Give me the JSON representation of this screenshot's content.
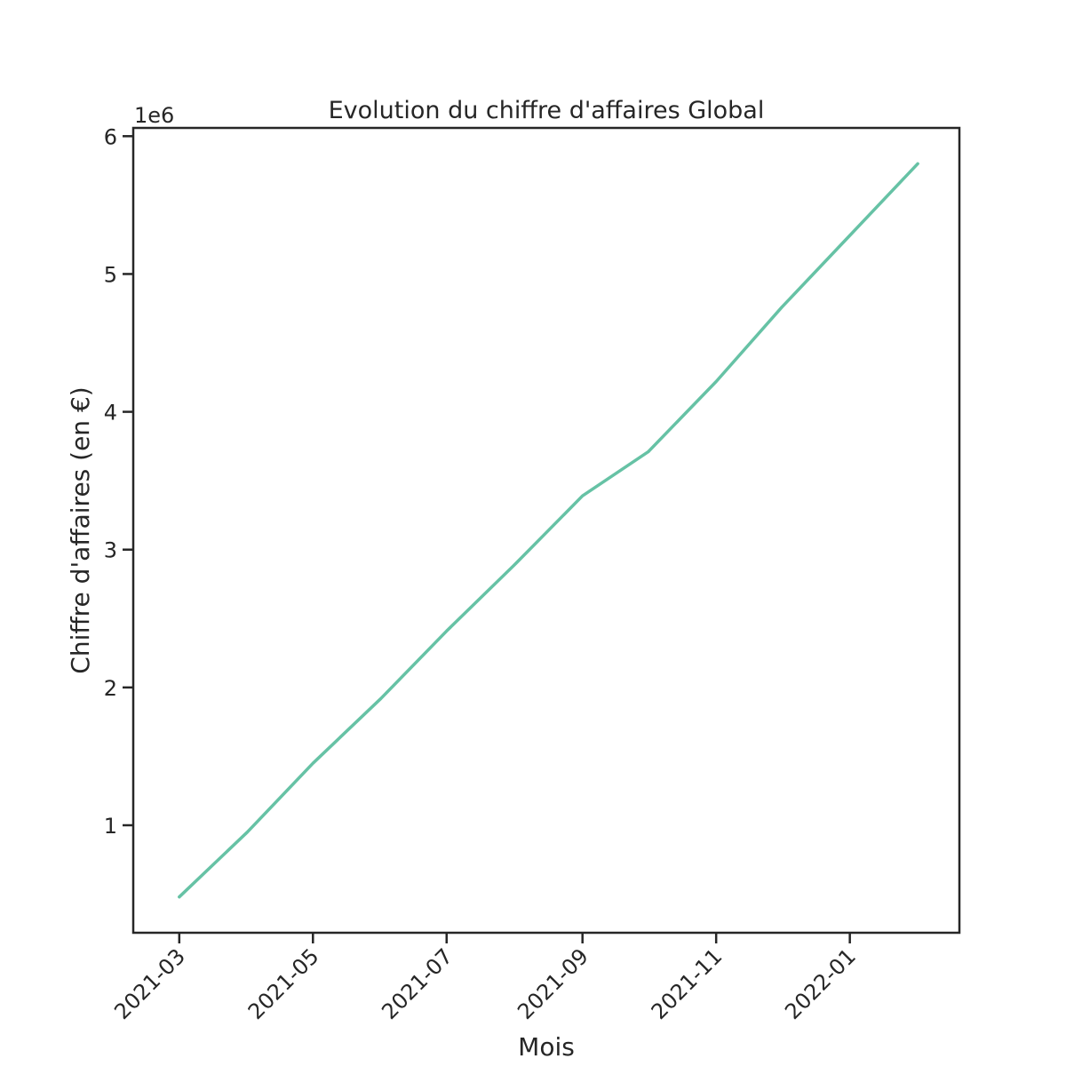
{
  "chart_data": {
    "type": "line",
    "title": "Evolution du chiffre d'affaires Global",
    "xlabel": "Mois",
    "ylabel": "Chiffre d'affaires (en €)",
    "y_offset_label": "1e6",
    "x_axis_type": "date",
    "x_ticks": [
      "2021-03",
      "2021-05",
      "2021-07",
      "2021-09",
      "2021-11",
      "2022-01"
    ],
    "y_ticks": [
      1,
      2,
      3,
      4,
      5,
      6
    ],
    "xlim": [
      "2021-02-08",
      "2022-02-20"
    ],
    "ylim": [
      220000,
      6060000
    ],
    "grid": false,
    "legend": "none",
    "colors": {
      "line": "#66c2a5",
      "axes": "#262626",
      "background": "#ffffff"
    },
    "x": [
      "2021-03-01",
      "2021-04-01",
      "2021-05-01",
      "2021-06-01",
      "2021-07-01",
      "2021-08-01",
      "2021-09-01",
      "2021-10-01",
      "2021-11-01",
      "2021-12-01",
      "2022-01-01",
      "2022-02-01"
    ],
    "series": [
      {
        "values": [
          480000,
          950000,
          1450000,
          1920000,
          2410000,
          2890000,
          3390000,
          3710000,
          4220000,
          4760000,
          5280000,
          5800000
        ]
      }
    ]
  }
}
